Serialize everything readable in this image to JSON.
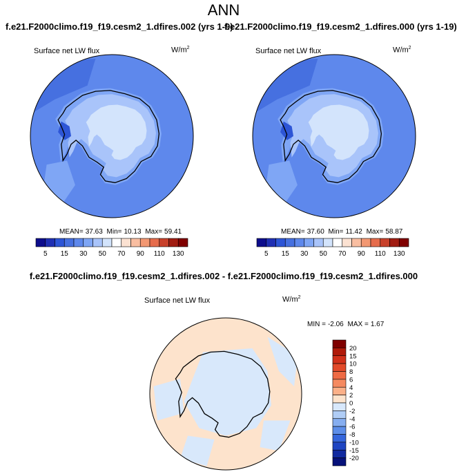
{
  "header": {
    "title": "ANN",
    "left_run": "f.e21.F2000climo.f19_f19.cesm2_1.dfires.002 (yrs 1-9)",
    "right_run": "f.e21.F2000climo.f19_f19.cesm2_1.dfires.000 (yrs 1-19)",
    "diff_title": "f.e21.F2000climo.f19_f19.cesm2_1.dfires.002 - f.e21.F2000climo.f19_f19.cesm2_1.dfires.000"
  },
  "chart_data": [
    {
      "type": "heatmap",
      "id": "panel-left",
      "projection": "polar-stereographic-south",
      "variable": "Surface net LW flux",
      "units": "W/m",
      "units_exp": "2",
      "mean_label": "MEAN=",
      "mean": "37.63",
      "min_label": "Min=",
      "min": "10.13",
      "max_label": "Max=",
      "max": "59.41",
      "contour_levels": [
        5,
        10,
        15,
        20,
        30,
        40,
        50,
        60,
        70,
        80,
        90,
        100,
        110,
        120,
        130
      ],
      "colorbar_labels": [
        "5",
        "15",
        "30",
        "50",
        "70",
        "90",
        "110",
        "130"
      ],
      "colorbar_orientation": "horizontal",
      "colors": [
        "#0d0d8c",
        "#1f2fb3",
        "#2d55d6",
        "#4670e0",
        "#5e88ec",
        "#7fa6f5",
        "#a9c4fa",
        "#d3e4fc",
        "#ffffff",
        "#fce2d2",
        "#f9bea1",
        "#f39872",
        "#e66c4c",
        "#c8412b",
        "#a11d12",
        "#800000"
      ]
    },
    {
      "type": "heatmap",
      "id": "panel-right",
      "projection": "polar-stereographic-south",
      "variable": "Surface net LW flux",
      "units": "W/m",
      "units_exp": "2",
      "mean_label": "MEAN=",
      "mean": "37.60",
      "min_label": "Min=",
      "min": "11.42",
      "max_label": "Max=",
      "max": "58.87",
      "contour_levels": [
        5,
        10,
        15,
        20,
        30,
        40,
        50,
        60,
        70,
        80,
        90,
        100,
        110,
        120,
        130
      ],
      "colorbar_labels": [
        "5",
        "15",
        "30",
        "50",
        "70",
        "90",
        "110",
        "130"
      ],
      "colorbar_orientation": "horizontal",
      "colors": [
        "#0d0d8c",
        "#1f2fb3",
        "#2d55d6",
        "#4670e0",
        "#5e88ec",
        "#7fa6f5",
        "#a9c4fa",
        "#d3e4fc",
        "#ffffff",
        "#fce2d2",
        "#f9bea1",
        "#f39872",
        "#e66c4c",
        "#c8412b",
        "#a11d12",
        "#800000"
      ]
    },
    {
      "type": "heatmap",
      "id": "panel-diff",
      "projection": "polar-stereographic-south",
      "variable": "Surface net LW flux",
      "units": "W/m",
      "units_exp": "2",
      "min_label": "MIN =",
      "min": "-2.06",
      "max_label": "MAX =",
      "max": "1.67",
      "contour_levels": [
        -20,
        -15,
        -10,
        -8,
        -6,
        -4,
        -2,
        0,
        2,
        4,
        6,
        8,
        10,
        15,
        20
      ],
      "colorbar_labels": [
        "20",
        "15",
        "10",
        "8",
        "6",
        "4",
        "2",
        "0",
        "-2",
        "-4",
        "-6",
        "-8",
        "-10",
        "-15",
        "-20"
      ],
      "colorbar_orientation": "vertical",
      "colors": [
        "#7f0000",
        "#b01a0a",
        "#d1301a",
        "#e24a2a",
        "#ee6a44",
        "#f58a60",
        "#fbb088",
        "#fde3cc",
        "#d8e8fb",
        "#b0cdf6",
        "#86aef0",
        "#5d8ee9",
        "#3566dc",
        "#1f45c2",
        "#112aa0",
        "#07127a"
      ]
    }
  ]
}
